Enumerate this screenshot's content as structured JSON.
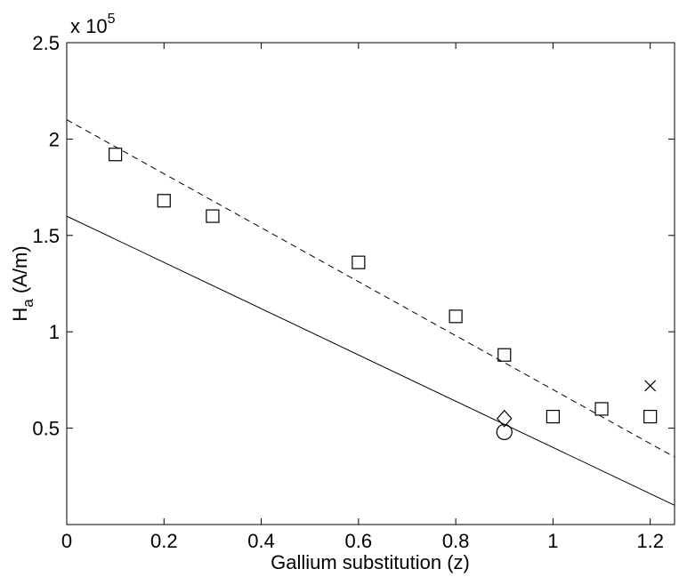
{
  "chart_data": {
    "type": "scatter",
    "xlabel": "Gallium substitution (z)",
    "ylabel_main": "H",
    "ylabel_sub": "a",
    "ylabel_unit": " (A/m)",
    "y_multiplier_prefix": "x 10",
    "y_multiplier_exponent": "5",
    "xlim": [
      0,
      1.25
    ],
    "ylim": [
      0,
      2.5
    ],
    "x_ticks": [
      0,
      0.2,
      0.4,
      0.6,
      0.8,
      1.0,
      1.2
    ],
    "x_tick_labels": [
      "0",
      "0.2",
      "0.4",
      "0.6",
      "0.8",
      "1",
      "1.2"
    ],
    "y_ticks": [
      0.5,
      1.0,
      1.5,
      2.0,
      2.5
    ],
    "y_tick_labels": [
      "0.5",
      "1",
      "1.5",
      "2",
      "2.5"
    ],
    "grid": false,
    "series": [
      {
        "marker": "square",
        "points": [
          [
            0.1,
            1.92
          ],
          [
            0.2,
            1.68
          ],
          [
            0.3,
            1.6
          ],
          [
            0.6,
            1.36
          ],
          [
            0.8,
            1.08
          ],
          [
            0.9,
            0.88
          ],
          [
            1.0,
            0.56
          ],
          [
            1.1,
            0.6
          ],
          [
            1.2,
            0.56
          ]
        ]
      },
      {
        "marker": "diamond",
        "points": [
          [
            0.9,
            0.55
          ]
        ]
      },
      {
        "marker": "circle",
        "points": [
          [
            0.9,
            0.48
          ]
        ]
      },
      {
        "marker": "cross",
        "points": [
          [
            1.2,
            0.72
          ]
        ]
      }
    ],
    "lines": [
      {
        "style": "dashed",
        "points": [
          [
            0,
            2.1
          ],
          [
            1.25,
            0.35
          ]
        ]
      },
      {
        "style": "solid",
        "points": [
          [
            0,
            1.6
          ],
          [
            1.25,
            0.1
          ]
        ]
      }
    ]
  }
}
